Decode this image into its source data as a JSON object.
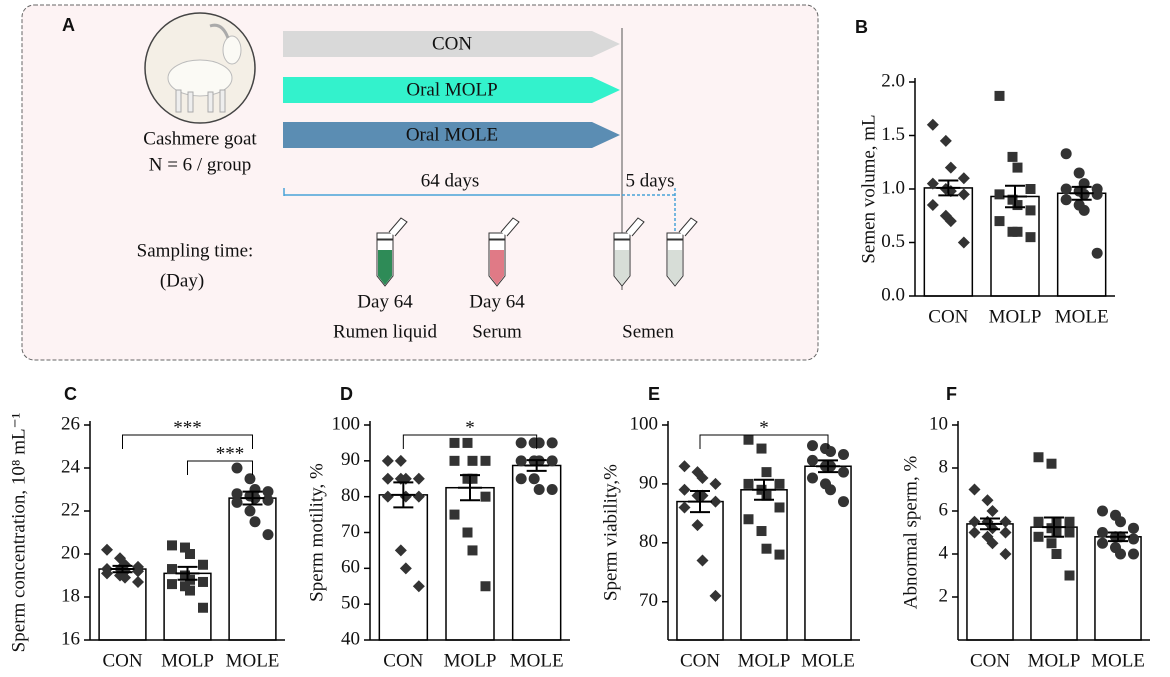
{
  "diagram": {
    "panel": "A",
    "goat_label": "Cashmere goat",
    "group_label": "N = 6 / group",
    "arrows": [
      {
        "label": "CON",
        "color": "#d9d9d9"
      },
      {
        "label": "Oral MOLP",
        "color": "#33f2cc"
      },
      {
        "label": "Oral MOLE",
        "color": "#5b8db3"
      }
    ],
    "durations": [
      "64 days",
      "5 days"
    ],
    "sampling_label": "Sampling time:",
    "sampling_unit": "(Day)",
    "samples": [
      {
        "day": "Day 64",
        "label": "Rumen liquid",
        "color": "#2e8b57"
      },
      {
        "day": "Day 64",
        "label": "Serum",
        "color": "#e07a86"
      },
      {
        "label": "Semen",
        "color": "#d7ddd7"
      }
    ]
  },
  "chart_data": [
    {
      "type": "bar",
      "panel": "B",
      "y_label": "Semen volume, mL",
      "categories": [
        "CON",
        "MOLP",
        "MOLE"
      ],
      "values": [
        1.01,
        0.93,
        0.96
      ],
      "errors": [
        0.07,
        0.1,
        0.06
      ],
      "markers": [
        "diamond",
        "square",
        "circle"
      ],
      "color": "#333333",
      "points": [
        [
          1.6,
          1.45,
          1.2,
          1.1,
          1.05,
          1.0,
          0.98,
          0.95,
          0.85,
          0.75,
          0.7,
          0.5
        ],
        [
          1.87,
          1.3,
          1.2,
          1.0,
          0.95,
          0.9,
          0.85,
          0.8,
          0.7,
          0.6,
          0.6,
          0.55
        ],
        [
          1.33,
          1.15,
          1.05,
          1.0,
          1.0,
          0.98,
          0.95,
          0.95,
          0.9,
          0.85,
          0.8,
          0.4
        ]
      ],
      "ylim": [
        0,
        2
      ],
      "yticks": [
        {
          "value": 0,
          "label": "0.0"
        },
        0.5,
        {
          "value": 1,
          "label": "1.0"
        },
        1.5,
        {
          "value": 2,
          "label": "2.0"
        }
      ],
      "annotations": []
    },
    {
      "type": "bar",
      "panel": "C",
      "y_label": "Sperm concentration, 10⁸ mL⁻¹",
      "categories": [
        "CON",
        "MOLP",
        "MOLE"
      ],
      "values": [
        19.3,
        19.1,
        22.6
      ],
      "errors": [
        0.15,
        0.3,
        0.3
      ],
      "markers": [
        "diamond",
        "square",
        "circle"
      ],
      "color": "#333333",
      "points": [
        [
          20.2,
          19.8,
          19.5,
          19.4,
          19.3,
          19.3,
          19.2,
          19.2,
          19.1,
          19.0,
          18.9,
          18.7
        ],
        [
          20.4,
          20.3,
          20.0,
          19.5,
          19.3,
          19.0,
          18.8,
          18.7,
          18.6,
          18.5,
          18.3,
          17.5
        ],
        [
          24.0,
          23.5,
          23.0,
          22.9,
          22.8,
          22.7,
          22.6,
          22.5,
          22.4,
          22.0,
          21.5,
          20.9
        ]
      ],
      "ylim": [
        16,
        26
      ],
      "yticks": [
        16,
        18,
        20,
        22,
        24,
        26
      ],
      "annotations": [
        {
          "text": "***",
          "from": 0,
          "to": 2
        },
        {
          "text": "***",
          "from": 1,
          "to": 2
        }
      ]
    },
    {
      "type": "bar",
      "panel": "D",
      "y_label": "Sperm motility, %",
      "categories": [
        "CON",
        "MOLP",
        "MOLE"
      ],
      "values": [
        80.5,
        82.5,
        88.7
      ],
      "errors": [
        3.5,
        3.5,
        1.5
      ],
      "markers": [
        "diamond",
        "square",
        "circle"
      ],
      "color": "#333333",
      "points": [
        [
          90,
          90,
          85,
          85,
          85,
          85,
          80,
          80,
          80,
          65,
          60,
          55
        ],
        [
          95,
          95,
          90,
          90,
          90,
          85,
          85,
          80,
          75,
          70,
          65,
          55
        ],
        [
          95,
          95,
          95,
          95,
          90,
          90,
          90,
          90,
          85,
          85,
          82,
          82
        ]
      ],
      "ylim": [
        40,
        100
      ],
      "yticks": [
        40,
        50,
        60,
        70,
        80,
        90,
        100
      ],
      "annotations": [
        {
          "text": "*",
          "from": 0,
          "to": 2
        }
      ]
    },
    {
      "type": "bar",
      "panel": "E",
      "y_label": "Sperm viability,%",
      "categories": [
        "CON",
        "MOLP",
        "MOLE"
      ],
      "values": [
        87,
        89,
        93
      ],
      "errors": [
        1.8,
        1.7,
        1
      ],
      "markers": [
        "diamond",
        "square",
        "circle"
      ],
      "color": "#333333",
      "points": [
        [
          93,
          92,
          91,
          90,
          89,
          88,
          88,
          87,
          86,
          83,
          77,
          71
        ],
        [
          97.5,
          96,
          92,
          90,
          90,
          89,
          88,
          86,
          84,
          82,
          79,
          78
        ],
        [
          96.5,
          96,
          95.5,
          95,
          94,
          93,
          93,
          92,
          91,
          90,
          89,
          87
        ]
      ],
      "ylim": [
        63.5,
        100
      ],
      "yticks": [
        70,
        80,
        90,
        100
      ],
      "annotations": [
        {
          "text": "*",
          "from": 0,
          "to": 2
        }
      ]
    },
    {
      "type": "bar",
      "panel": "F",
      "y_label": "Abnormal sperm, %",
      "categories": [
        "CON",
        "MOLP",
        "MOLE"
      ],
      "values": [
        5.4,
        5.25,
        4.8
      ],
      "errors": [
        0.25,
        0.45,
        0.2
      ],
      "markers": [
        "diamond",
        "square",
        "circle"
      ],
      "color": "#333333",
      "points": [
        [
          7,
          6.5,
          6,
          5.5,
          5.5,
          5.5,
          5.2,
          5,
          5,
          4.8,
          4.5,
          4
        ],
        [
          8.5,
          8.2,
          5.5,
          5.5,
          5.5,
          5.2,
          5,
          5,
          4.8,
          4.5,
          4,
          3
        ],
        [
          6,
          5.8,
          5.5,
          5.2,
          5,
          4.8,
          4.8,
          4.7,
          4.5,
          4.3,
          4,
          4
        ]
      ],
      "ylim": [
        0,
        10
      ],
      "yticks": [
        2,
        4,
        6,
        8,
        10
      ],
      "annotations": []
    }
  ]
}
